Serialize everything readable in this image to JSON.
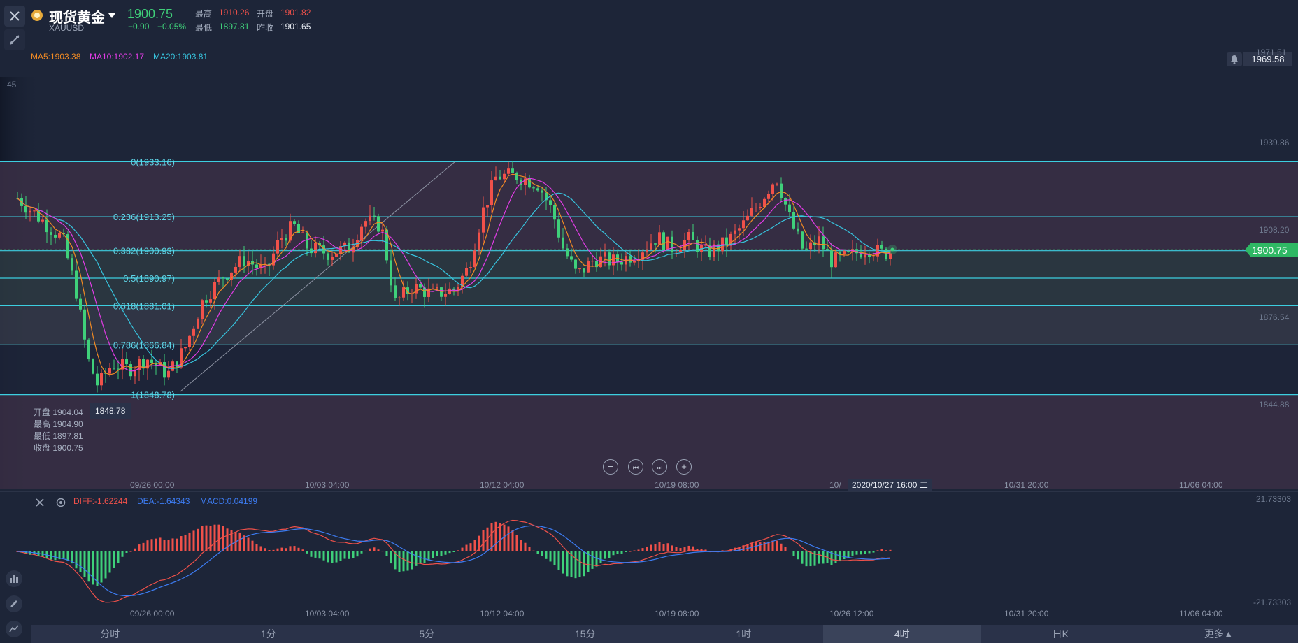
{
  "header": {
    "symbol_name": "现货黄金",
    "symbol_code": "XAUUSD",
    "last_price": "1900.75",
    "change": "−0.90",
    "change_pct": "−0.05%",
    "high_label": "最高",
    "high_value": "1910.26",
    "open_label": "开盘",
    "open_value": "1901.82",
    "low_label": "最低",
    "low_value": "1897.81",
    "prev_close_label": "昨收",
    "prev_close_value": "1901.65"
  },
  "ma": {
    "ma5": "MA5:1903.38",
    "ma10": "MA10:1902.17",
    "ma20": "MA20:1903.81"
  },
  "alert": {
    "value": "1969.58",
    "icon": "bell-icon"
  },
  "price_axis": {
    "top_partial": "1971.51",
    "left_partial": "45",
    "ticks": [
      "1939.86",
      "1908.20",
      "1876.54",
      "1844.88"
    ],
    "current": "1900.75"
  },
  "fib_levels": [
    {
      "label": "0(1933.16)",
      "price": 1933.16
    },
    {
      "label": "0.236(1913.25)",
      "price": 1913.25
    },
    {
      "label": "0.382(1900.93)",
      "price": 1900.93
    },
    {
      "label": "0.5(1890.97)",
      "price": 1890.97
    },
    {
      "label": "0.618(1881.01)",
      "price": 1881.01
    },
    {
      "label": "0.786(1866.84)",
      "price": 1866.84
    },
    {
      "label": "1(1848.78)",
      "price": 1848.78
    }
  ],
  "low_marker": "1848.78",
  "ohlc_panel": {
    "open": "开盘 1904.04",
    "high": "最高 1904.90",
    "low": "最低 1897.81",
    "close": "收盘 1900.75"
  },
  "x_labels": [
    "09/26 00:00",
    "10/03 04:00",
    "10/12 04:00",
    "10/19 08:00",
    "10/",
    "10/31 20:00",
    "11/06 04:00"
  ],
  "crosshair_date": "2020/10/27 16:00 二",
  "macd": {
    "diff": "DIFF:-1.62244",
    "dea": "DEA:-1.64343",
    "macd": "MACD:0.04199",
    "top": "21.73303",
    "bottom": "-21.73303",
    "x_labels": [
      "09/26 00:00",
      "10/03 04:00",
      "10/12 04:00",
      "10/19 08:00",
      "10/26 12:00",
      "10/31 20:00",
      "11/06 04:00"
    ]
  },
  "tabs": [
    "分时",
    "1分",
    "5分",
    "15分",
    "1时",
    "4时",
    "日K",
    "更多▲"
  ],
  "active_tab": "4时",
  "colors": {
    "up": "#f0514a",
    "down": "#3fd07a",
    "ma5": "#f08a24",
    "ma10": "#e23ce6",
    "ma20": "#37c4de",
    "fib": "#3ccfe0",
    "bg": "#1d2538"
  }
}
